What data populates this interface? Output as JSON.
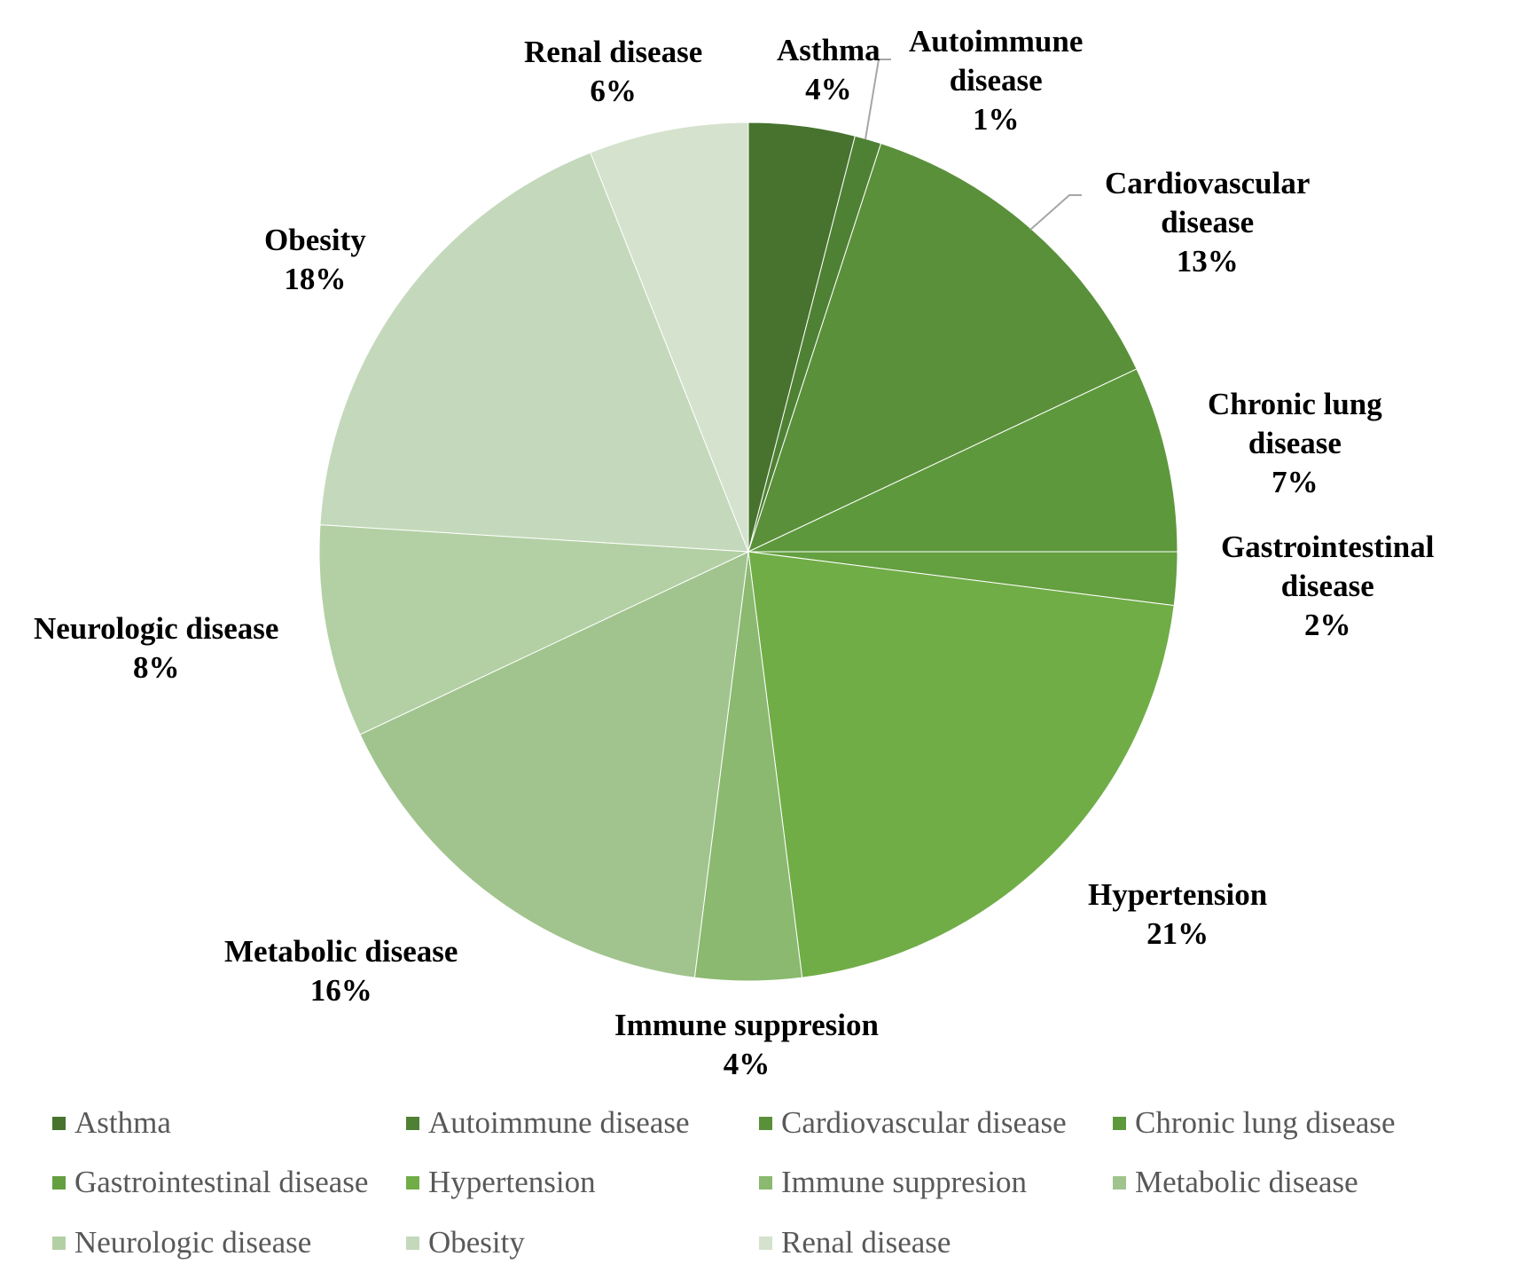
{
  "chart_data": {
    "type": "pie",
    "title": "",
    "categories": [
      "Asthma",
      "Autoimmune disease",
      "Cardiovascular disease",
      "Chronic lung disease",
      "Gastrointestinal disease",
      "Hypertension",
      "Immune suppresion",
      "Metabolic disease",
      "Neurologic disease",
      "Obesity",
      "Renal disease"
    ],
    "values": [
      4,
      1,
      13,
      7,
      2,
      21,
      4,
      16,
      8,
      18,
      6
    ],
    "data_labels": [
      {
        "name_lines": [
          "Asthma"
        ],
        "pct": "4%"
      },
      {
        "name_lines": [
          "Autoimmune",
          "disease"
        ],
        "pct": "1%"
      },
      {
        "name_lines": [
          "Cardiovascular",
          "disease"
        ],
        "pct": "13%"
      },
      {
        "name_lines": [
          "Chronic lung",
          "disease"
        ],
        "pct": "7%"
      },
      {
        "name_lines": [
          "Gastrointestinal",
          "disease"
        ],
        "pct": "2%"
      },
      {
        "name_lines": [
          "Hypertension"
        ],
        "pct": "21%"
      },
      {
        "name_lines": [
          "Immune suppresion"
        ],
        "pct": "4%"
      },
      {
        "name_lines": [
          "Metabolic disease"
        ],
        "pct": "16%"
      },
      {
        "name_lines": [
          "Neurologic disease"
        ],
        "pct": "8%"
      },
      {
        "name_lines": [
          "Obesity"
        ],
        "pct": "18%"
      },
      {
        "name_lines": [
          "Renal disease"
        ],
        "pct": "6%"
      }
    ],
    "colors": [
      "#47732E",
      "#4F8134",
      "#5A903A",
      "#5E983C",
      "#649F40",
      "#70AD47",
      "#8AB96F",
      "#A1C48E",
      "#B3D0A5",
      "#C4D9BB",
      "#D5E2CD"
    ],
    "legend_position": "bottom",
    "start_angle": "12 o'clock, clockwise"
  }
}
